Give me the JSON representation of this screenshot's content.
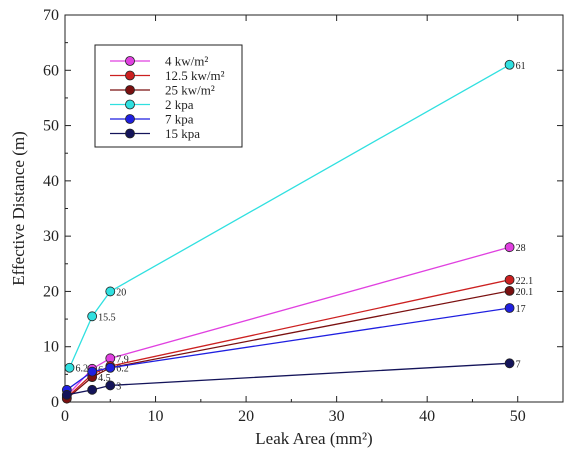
{
  "chart_data": {
    "type": "line",
    "title": "",
    "xlabel": "Leak Area (mm²)",
    "ylabel": "Effective Distance (m)",
    "xlim": [
      0,
      55
    ],
    "ylim": [
      0,
      70
    ],
    "xticks": [
      0,
      10,
      20,
      30,
      40,
      50
    ],
    "yticks": [
      0,
      10,
      20,
      30,
      40,
      50,
      60,
      70
    ],
    "grid": false,
    "legend_position": "top-left",
    "series": [
      {
        "name": "4 kw/m²",
        "color": "#e040e0",
        "x": [
          0.2,
          3,
          5,
          49.1
        ],
        "y": [
          1.1,
          6,
          7.9,
          28
        ],
        "labels": [
          "",
          "6",
          "7.9",
          "28"
        ]
      },
      {
        "name": "12.5 kw/m²",
        "color": "#cc2020",
        "x": [
          0.2,
          3,
          5,
          49.1
        ],
        "y": [
          0.8,
          5,
          6.5,
          22.1
        ],
        "labels": [
          "",
          "",
          "",
          "22.1"
        ]
      },
      {
        "name": "25 kw/m²",
        "color": "#7a1010",
        "x": [
          0.2,
          3,
          5,
          49.1
        ],
        "y": [
          0.6,
          4.5,
          6.2,
          20.1
        ],
        "labels": [
          "",
          "4.5",
          "6.2",
          "20.1"
        ]
      },
      {
        "name": "2 kpa",
        "color": "#30e0e0",
        "x": [
          0.5,
          3,
          5,
          49.1
        ],
        "y": [
          6.2,
          15.5,
          20,
          61
        ],
        "labels": [
          "6.2",
          "15.5",
          "20",
          "61"
        ]
      },
      {
        "name": "7 kpa",
        "color": "#1f1fe0",
        "x": [
          0.2,
          3,
          5,
          49.1
        ],
        "y": [
          2.2,
          5.5,
          6.2,
          17
        ],
        "labels": [
          "",
          "",
          "",
          "17"
        ]
      },
      {
        "name": "15 kpa",
        "color": "#14145a",
        "x": [
          0.2,
          3,
          5,
          49.1
        ],
        "y": [
          1.3,
          2.2,
          3,
          7
        ],
        "labels": [
          "",
          "",
          "3",
          "7"
        ]
      }
    ]
  }
}
